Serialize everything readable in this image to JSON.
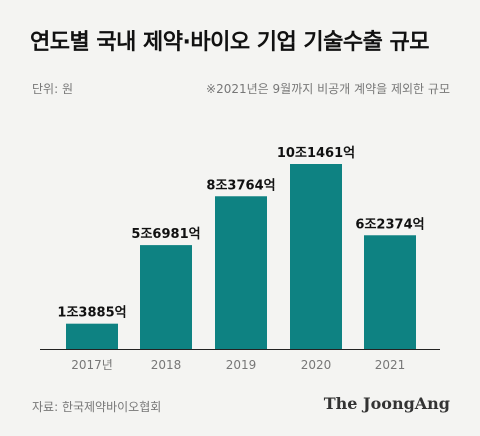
{
  "header": {
    "title": "연도별 국내 제약·바이오 기업 기술수출 규모",
    "unit": "단위: 원",
    "note": "※2021년은 9월까지 비공개 계약을 제외한 규모"
  },
  "footer": {
    "source": "자료: 한국제약바이오협회",
    "brand": "The JoongAng"
  },
  "chart_data": {
    "type": "bar",
    "categories": [
      "2017년",
      "2018",
      "2019",
      "2020",
      "2021"
    ],
    "values": [
      13885,
      56981,
      83764,
      101461,
      62374
    ],
    "value_unit": "억원",
    "data_labels": [
      "1조3885억",
      "5조6981억",
      "8조3764억",
      "10조1461억",
      "6조2374억"
    ],
    "ylim": [
      0,
      101461
    ],
    "grid": false,
    "legend": "none",
    "bar_color": "#0e8282"
  }
}
